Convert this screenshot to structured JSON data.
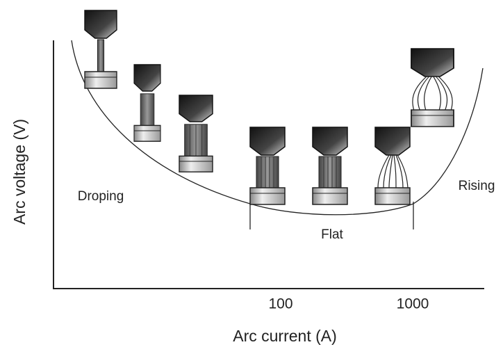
{
  "axes": {
    "x_label": "Arc current (A)",
    "y_label": "Arc voltage (V)",
    "x_ticks": [
      "100",
      "1000"
    ]
  },
  "regions": [
    "Droping",
    "Flat",
    "Rising"
  ]
}
